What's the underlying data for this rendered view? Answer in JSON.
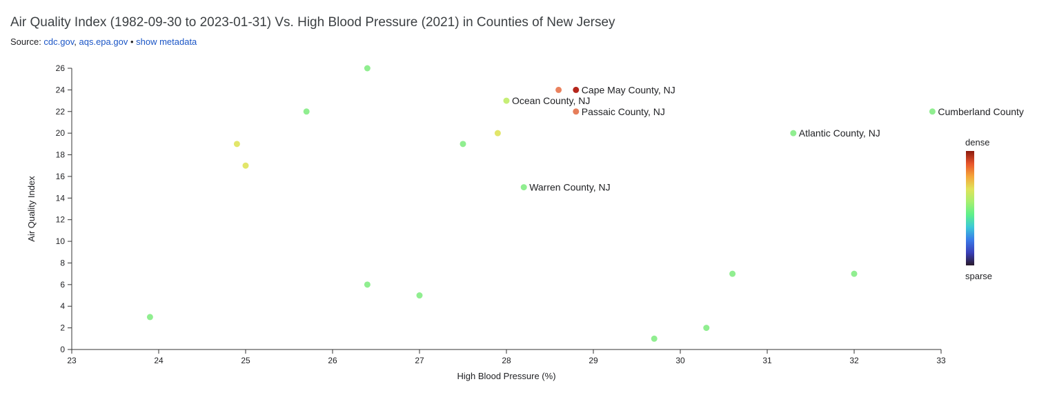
{
  "header": {
    "title": "Air Quality Index (1982-09-30 to 2023-01-31) Vs. High Blood Pressure (2021) in Counties of New Jersey",
    "source_prefix": "Source: ",
    "source_link_1": "cdc.gov",
    "source_sep": ", ",
    "source_link_2": "aqs.epa.gov",
    "source_bullet": " • ",
    "metadata_link": "show metadata"
  },
  "chart_data": {
    "type": "scatter",
    "xlabel": "High Blood Pressure (%)",
    "ylabel": "Air Quality Index",
    "xlim": [
      23,
      33
    ],
    "ylim": [
      0,
      26
    ],
    "x_ticks": [
      23,
      24,
      25,
      26,
      27,
      28,
      29,
      30,
      31,
      32,
      33
    ],
    "y_ticks": [
      0,
      2,
      4,
      6,
      8,
      10,
      12,
      14,
      16,
      18,
      20,
      22,
      24,
      26
    ],
    "grid": false,
    "legend": {
      "type": "density-colorbar",
      "placement": "right",
      "top_label": "dense",
      "bottom_label": "sparse",
      "colors": [
        "#8b1a0e",
        "#e8552b",
        "#f4a63a",
        "#e0e35a",
        "#a6ef6f",
        "#5ef08a",
        "#3cc8d8",
        "#3a7ae8",
        "#3a3fb8",
        "#2a1a2a"
      ]
    },
    "points": [
      {
        "x": 23.9,
        "y": 3,
        "color": "#90ee90"
      },
      {
        "x": 24.9,
        "y": 19,
        "color": "#e2e66a"
      },
      {
        "x": 25.0,
        "y": 17,
        "color": "#e2e66a"
      },
      {
        "x": 25.7,
        "y": 22,
        "color": "#90ee90"
      },
      {
        "x": 26.4,
        "y": 26,
        "color": "#90ee90"
      },
      {
        "x": 26.4,
        "y": 6,
        "color": "#90ee90"
      },
      {
        "x": 27.0,
        "y": 5,
        "color": "#90ee90"
      },
      {
        "x": 27.5,
        "y": 19,
        "color": "#90ee90"
      },
      {
        "x": 27.9,
        "y": 20,
        "color": "#e2e66a"
      },
      {
        "x": 28.0,
        "y": 23,
        "color": "#c6ee76",
        "label": "Ocean County, NJ"
      },
      {
        "x": 28.2,
        "y": 15,
        "color": "#90ee90",
        "label": "Warren County, NJ"
      },
      {
        "x": 28.6,
        "y": 24,
        "color": "#ea825e"
      },
      {
        "x": 28.8,
        "y": 24,
        "color": "#b5261c",
        "label": "Cape May County, NJ"
      },
      {
        "x": 28.8,
        "y": 22,
        "color": "#e67e5a",
        "label": "Passaic County, NJ"
      },
      {
        "x": 29.7,
        "y": 1,
        "color": "#90ee90"
      },
      {
        "x": 30.3,
        "y": 2,
        "color": "#90ee90"
      },
      {
        "x": 30.6,
        "y": 7,
        "color": "#90ee90"
      },
      {
        "x": 31.3,
        "y": 20,
        "color": "#90ee90",
        "label": "Atlantic County, NJ"
      },
      {
        "x": 32.0,
        "y": 7,
        "color": "#90ee90"
      },
      {
        "x": 32.9,
        "y": 22,
        "color": "#90ee90",
        "label": "Cumberland County"
      }
    ]
  }
}
